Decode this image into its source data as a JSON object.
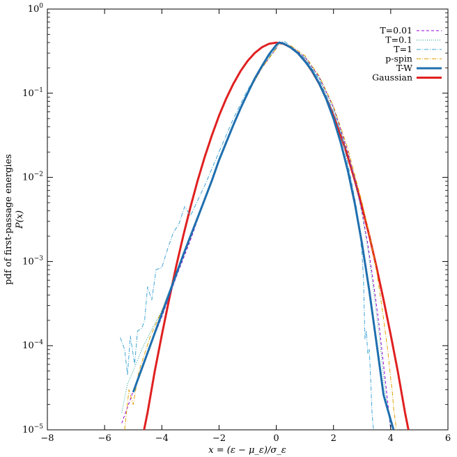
{
  "chart_data": {
    "type": "line",
    "title": "",
    "xlabel": "x = (ε − μ_ε)/σ_ε",
    "ylabel_line1": "pdf of first-passage energies",
    "ylabel_line2": "P(x)",
    "xlim": [
      -8,
      6
    ],
    "ylim": [
      1e-05,
      1
    ],
    "yscale": "log",
    "grid": false,
    "legend_position": "top-right",
    "x_ticks": [
      {
        "value": -8,
        "label": "−8"
      },
      {
        "value": -6,
        "label": "−6"
      },
      {
        "value": -4,
        "label": "−4"
      },
      {
        "value": -2,
        "label": "−2"
      },
      {
        "value": 0,
        "label": "0"
      },
      {
        "value": 2,
        "label": "2"
      },
      {
        "value": 4,
        "label": "4"
      },
      {
        "value": 6,
        "label": "6"
      }
    ],
    "y_ticks": [
      {
        "value": 1e-05,
        "base": "10",
        "exp": "−5"
      },
      {
        "value": 0.0001,
        "base": "10",
        "exp": "−4"
      },
      {
        "value": 0.001,
        "base": "10",
        "exp": "−3"
      },
      {
        "value": 0.01,
        "base": "10",
        "exp": "−2"
      },
      {
        "value": 0.1,
        "base": "10",
        "exp": "−1"
      },
      {
        "value": 1,
        "base": "10",
        "exp": "0"
      }
    ],
    "series": [
      {
        "name": "T=0.01",
        "color": "#9400d3",
        "style": "dashed",
        "x": [
          -5.4,
          -5.1,
          -4.8,
          -4.4,
          -4.0,
          -3.5,
          -3.0,
          -2.5,
          -2.0,
          -1.5,
          -1.0,
          -0.5,
          0.0,
          0.1,
          0.5,
          1.0,
          1.5,
          2.0,
          2.5,
          2.8,
          3.0,
          3.2,
          3.4,
          3.6,
          3.8,
          4.0
        ],
        "y": [
          1.2e-05,
          2.3e-05,
          4.5e-05,
          0.0001,
          0.00022,
          0.00065,
          0.0018,
          0.0055,
          0.016,
          0.043,
          0.1,
          0.2,
          0.34,
          0.4,
          0.36,
          0.27,
          0.155,
          0.068,
          0.02,
          0.008,
          0.0038,
          0.0016,
          0.00055,
          0.00017,
          4.2e-05,
          1e-05
        ]
      },
      {
        "name": "T=0.1",
        "color": "#1a9e8a",
        "style": "dotted",
        "x": [
          -5.4,
          -5.2,
          -5.0,
          -4.7,
          -4.3,
          -4.0,
          -3.5,
          -3.0,
          -2.5,
          -2.0,
          -1.5,
          -1.0,
          -0.5,
          0.0,
          0.1,
          0.5,
          1.0,
          1.5,
          2.0,
          2.5,
          2.8,
          3.0,
          3.2,
          3.4,
          3.6,
          3.8,
          4.0
        ],
        "y": [
          1.6e-05,
          3.5e-05,
          5e-05,
          9e-05,
          0.00017,
          0.00026,
          0.00075,
          0.002,
          0.0058,
          0.016,
          0.044,
          0.1,
          0.2,
          0.34,
          0.41,
          0.36,
          0.27,
          0.15,
          0.066,
          0.019,
          0.0078,
          0.0036,
          0.0014,
          0.00045,
          0.00013,
          3e-05,
          1e-05
        ]
      },
      {
        "name": "T=1",
        "color": "#42a5d6",
        "style": "dashdot",
        "x": [
          -5.45,
          -5.3,
          -5.2,
          -5.1,
          -4.95,
          -4.85,
          -4.7,
          -4.6,
          -4.5,
          -4.35,
          -4.2,
          -4.0,
          -3.8,
          -3.6,
          -3.4,
          -3.2,
          -3.0,
          -2.5,
          -2.0,
          -1.5,
          -1.0,
          -0.5,
          0.0,
          0.1,
          0.3,
          0.5,
          1.0,
          1.5,
          2.0,
          2.3,
          2.6,
          2.8,
          2.9,
          3.0,
          3.05,
          3.1,
          3.15,
          3.2,
          3.25,
          3.3,
          3.35,
          3.4
        ],
        "y": [
          0.000125,
          9e-05,
          4.5e-05,
          0.00013,
          6e-05,
          0.00015,
          0.00016,
          0.0002,
          0.0005,
          0.00035,
          0.0008,
          0.00085,
          0.0014,
          0.0022,
          0.0028,
          0.0045,
          0.0035,
          0.008,
          0.02,
          0.05,
          0.11,
          0.21,
          0.35,
          0.4,
          0.41,
          0.36,
          0.26,
          0.145,
          0.06,
          0.03,
          0.01,
          0.0044,
          0.0025,
          0.0012,
          0.0006,
          0.00012,
          0.00015,
          8e-05,
          9e-05,
          4e-05,
          1.5e-05,
          1e-05
        ]
      },
      {
        "name": "p-spin",
        "color": "#e0a000",
        "style": "dashdot",
        "x": [
          -5.3,
          -5.15,
          -5.0,
          -4.8,
          -4.6,
          -4.4,
          -4.0,
          -3.5,
          -3.0,
          -2.5,
          -2.0,
          -1.5,
          -1.0,
          -0.5,
          0.0,
          0.1,
          0.5,
          1.0,
          1.5,
          2.0,
          2.5,
          3.0,
          3.3,
          3.5,
          3.7,
          3.9,
          4.0,
          4.05,
          4.1,
          4.2
        ],
        "y": [
          1e-05,
          3e-05,
          2e-05,
          5e-05,
          8e-05,
          0.00013,
          0.00026,
          0.0007,
          0.0019,
          0.0056,
          0.016,
          0.043,
          0.1,
          0.2,
          0.34,
          0.4,
          0.37,
          0.28,
          0.16,
          0.07,
          0.022,
          0.005,
          0.0018,
          0.0008,
          0.00028,
          8.5e-05,
          4e-05,
          3e-05,
          1.8e-05,
          1e-05
        ]
      },
      {
        "name": "T-W",
        "color": "#1f6fae",
        "style": "solid-thick",
        "x": [
          -5.0,
          -4.75,
          -4.5,
          -4.25,
          -4.0,
          -3.75,
          -3.5,
          -3.25,
          -3.0,
          -2.75,
          -2.5,
          -2.25,
          -2.0,
          -1.75,
          -1.5,
          -1.25,
          -1.0,
          -0.75,
          -0.5,
          -0.25,
          0.0,
          0.1,
          0.25,
          0.5,
          0.75,
          1.0,
          1.25,
          1.5,
          1.75,
          2.0,
          2.25,
          2.5,
          2.75,
          3.0,
          3.25,
          3.5,
          3.75,
          4.0,
          4.1
        ],
        "y": [
          2.8e-05,
          4.8e-05,
          8.2e-05,
          0.00014,
          0.00024,
          0.00041,
          0.0007,
          0.0012,
          0.002,
          0.0033,
          0.0055,
          0.0092,
          0.016,
          0.026,
          0.042,
          0.066,
          0.1,
          0.15,
          0.21,
          0.29,
          0.375,
          0.4,
          0.39,
          0.35,
          0.3,
          0.24,
          0.185,
          0.13,
          0.085,
          0.05,
          0.026,
          0.012,
          0.0048,
          0.0016,
          0.00045,
          0.00011,
          2.6e-05,
          1.3e-05,
          1e-05
        ]
      },
      {
        "name": "Gaussian",
        "color": "#e02020",
        "style": "solid-thick",
        "x": [
          -4.62,
          -4.5,
          -4.25,
          -4.0,
          -3.75,
          -3.5,
          -3.25,
          -3.0,
          -2.75,
          -2.5,
          -2.25,
          -2.0,
          -1.75,
          -1.5,
          -1.25,
          -1.0,
          -0.75,
          -0.5,
          -0.25,
          0.0,
          0.25,
          0.5,
          0.75,
          1.0,
          1.25,
          1.5,
          1.75,
          2.0,
          2.25,
          2.5,
          2.75,
          3.0,
          3.25,
          3.5,
          3.75,
          4.0,
          4.25,
          4.5,
          4.62
        ],
        "y": [
          1e-05,
          1.6e-05,
          4.9e-05,
          0.000134,
          0.00035,
          0.00087,
          0.00203,
          0.00443,
          0.00909,
          0.0175,
          0.0317,
          0.054,
          0.0863,
          0.1295,
          0.1826,
          0.242,
          0.301,
          0.352,
          0.387,
          0.3989,
          0.387,
          0.352,
          0.301,
          0.242,
          0.1826,
          0.1295,
          0.0863,
          0.054,
          0.0317,
          0.0175,
          0.00909,
          0.00443,
          0.00203,
          0.00087,
          0.00035,
          0.000134,
          4.9e-05,
          1.6e-05,
          1e-05
        ]
      }
    ]
  }
}
